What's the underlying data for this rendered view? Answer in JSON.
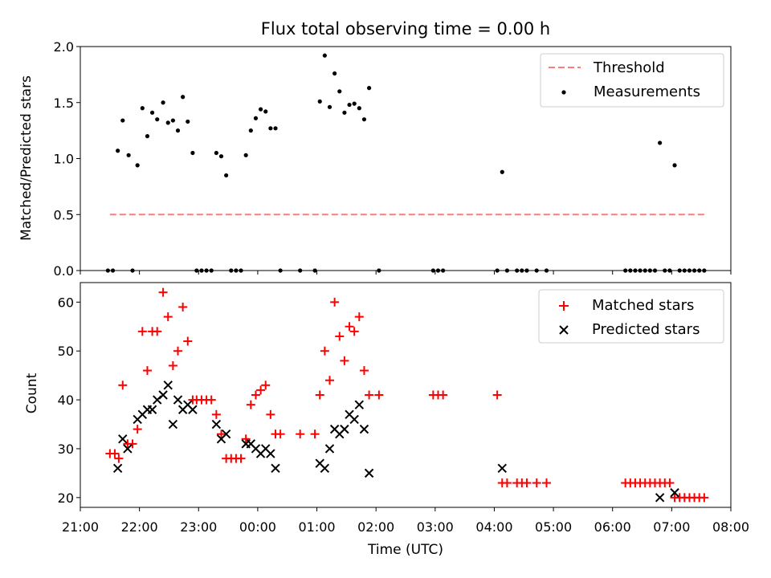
{
  "title": "Flux total observing time = 0.00 h",
  "colors": {
    "threshold": "#ff7a7a",
    "measurements": "#000000",
    "matched": "#ff0000",
    "predicted": "#000000"
  },
  "chart_data": [
    {
      "type": "scatter",
      "ylabel": "Matched/Predicted stars",
      "ylim": [
        0,
        2.0
      ],
      "xlim": [
        "21:00",
        "08:00"
      ],
      "yticks": [
        "0.0",
        "0.5",
        "1.0",
        "1.5",
        "2.0"
      ],
      "legend_position": "top-right",
      "threshold": {
        "name": "Threshold",
        "y": 0.5,
        "x_range": [
          "21:30",
          "07:35"
        ]
      },
      "series": [
        {
          "name": "Measurements",
          "points": [
            [
              "21:28",
              0
            ],
            [
              "21:33",
              0
            ],
            [
              "21:38",
              1.07
            ],
            [
              "21:43",
              1.34
            ],
            [
              "21:49",
              1.03
            ],
            [
              "21:53",
              0
            ],
            [
              "21:58",
              0.94
            ],
            [
              "22:03",
              1.45
            ],
            [
              "22:08",
              1.2
            ],
            [
              "22:13",
              1.41
            ],
            [
              "22:18",
              1.35
            ],
            [
              "22:24",
              1.5
            ],
            [
              "22:29",
              1.32
            ],
            [
              "22:34",
              1.34
            ],
            [
              "22:39",
              1.25
            ],
            [
              "22:44",
              1.55
            ],
            [
              "22:49",
              1.33
            ],
            [
              "22:54",
              1.05
            ],
            [
              "22:58",
              0
            ],
            [
              "23:03",
              0
            ],
            [
              "23:08",
              0
            ],
            [
              "23:13",
              0
            ],
            [
              "23:18",
              1.05
            ],
            [
              "23:23",
              1.02
            ],
            [
              "23:28",
              0.85
            ],
            [
              "23:33",
              0
            ],
            [
              "23:38",
              0
            ],
            [
              "23:43",
              0
            ],
            [
              "23:48",
              1.03
            ],
            [
              "23:53",
              1.25
            ],
            [
              "23:58",
              1.36
            ],
            [
              "00:03",
              1.44
            ],
            [
              "00:08",
              1.42
            ],
            [
              "00:13",
              1.27
            ],
            [
              "00:18",
              1.27
            ],
            [
              "00:23",
              0
            ],
            [
              "00:43",
              0
            ],
            [
              "00:58",
              0
            ],
            [
              "01:03",
              1.51
            ],
            [
              "01:08",
              1.92
            ],
            [
              "01:13",
              1.46
            ],
            [
              "01:18",
              1.76
            ],
            [
              "01:23",
              1.6
            ],
            [
              "01:28",
              1.41
            ],
            [
              "01:33",
              1.48
            ],
            [
              "01:38",
              1.49
            ],
            [
              "01:43",
              1.45
            ],
            [
              "01:48",
              1.35
            ],
            [
              "01:53",
              1.63
            ],
            [
              "02:03",
              0
            ],
            [
              "02:58",
              0
            ],
            [
              "03:03",
              0
            ],
            [
              "03:08",
              0
            ],
            [
              "04:03",
              0
            ],
            [
              "04:08",
              0.88
            ],
            [
              "04:13",
              0
            ],
            [
              "04:23",
              0
            ],
            [
              "04:28",
              0
            ],
            [
              "04:33",
              0
            ],
            [
              "04:43",
              0
            ],
            [
              "04:53",
              0
            ],
            [
              "06:13",
              0
            ],
            [
              "06:18",
              0
            ],
            [
              "06:23",
              0
            ],
            [
              "06:28",
              0
            ],
            [
              "06:33",
              0
            ],
            [
              "06:38",
              0
            ],
            [
              "06:43",
              0
            ],
            [
              "06:48",
              1.14
            ],
            [
              "06:53",
              0
            ],
            [
              "06:58",
              0
            ],
            [
              "07:03",
              0.94
            ],
            [
              "07:08",
              0
            ],
            [
              "07:13",
              0
            ],
            [
              "07:18",
              0
            ],
            [
              "07:23",
              0
            ],
            [
              "07:28",
              0
            ],
            [
              "07:33",
              0
            ]
          ]
        }
      ]
    },
    {
      "type": "scatter",
      "ylabel": "Count",
      "xlabel": "Time (UTC)",
      "ylim": [
        18,
        64
      ],
      "xlim": [
        "21:00",
        "08:00"
      ],
      "xticks": [
        "21:00",
        "22:00",
        "23:00",
        "00:00",
        "01:00",
        "02:00",
        "03:00",
        "04:00",
        "05:00",
        "06:00",
        "07:00",
        "08:00"
      ],
      "yticks": [
        "20",
        "30",
        "40",
        "50",
        "60"
      ],
      "legend_position": "top-right",
      "series": [
        {
          "name": "Matched stars",
          "marker": "+",
          "points": [
            [
              "21:30",
              29
            ],
            [
              "21:35",
              29
            ],
            [
              "21:39",
              28
            ],
            [
              "21:43",
              43
            ],
            [
              "21:48",
              31
            ],
            [
              "21:53",
              31
            ],
            [
              "21:58",
              34
            ],
            [
              "22:03",
              54
            ],
            [
              "22:08",
              46
            ],
            [
              "22:13",
              54
            ],
            [
              "22:18",
              54
            ],
            [
              "22:24",
              62
            ],
            [
              "22:29",
              57
            ],
            [
              "22:34",
              47
            ],
            [
              "22:39",
              50
            ],
            [
              "22:44",
              59
            ],
            [
              "22:49",
              52
            ],
            [
              "22:54",
              40
            ],
            [
              "22:58",
              40
            ],
            [
              "23:03",
              40
            ],
            [
              "23:08",
              40
            ],
            [
              "23:13",
              40
            ],
            [
              "23:18",
              37
            ],
            [
              "23:23",
              33
            ],
            [
              "23:28",
              28
            ],
            [
              "23:33",
              28
            ],
            [
              "23:38",
              28
            ],
            [
              "23:43",
              28
            ],
            [
              "23:48",
              32
            ],
            [
              "23:53",
              39
            ],
            [
              "23:58",
              41
            ],
            [
              "00:03",
              42
            ],
            [
              "00:08",
              43
            ],
            [
              "00:13",
              37
            ],
            [
              "00:18",
              33
            ],
            [
              "00:23",
              33
            ],
            [
              "00:43",
              33
            ],
            [
              "00:58",
              33
            ],
            [
              "01:03",
              41
            ],
            [
              "01:08",
              50
            ],
            [
              "01:13",
              44
            ],
            [
              "01:18",
              60
            ],
            [
              "01:23",
              53
            ],
            [
              "01:28",
              48
            ],
            [
              "01:33",
              55
            ],
            [
              "01:38",
              54
            ],
            [
              "01:43",
              57
            ],
            [
              "01:48",
              46
            ],
            [
              "01:53",
              41
            ],
            [
              "02:03",
              41
            ],
            [
              "02:58",
              41
            ],
            [
              "03:03",
              41
            ],
            [
              "03:08",
              41
            ],
            [
              "04:03",
              41
            ],
            [
              "04:08",
              23
            ],
            [
              "04:13",
              23
            ],
            [
              "04:23",
              23
            ],
            [
              "04:28",
              23
            ],
            [
              "04:33",
              23
            ],
            [
              "04:43",
              23
            ],
            [
              "04:53",
              23
            ],
            [
              "06:13",
              23
            ],
            [
              "06:18",
              23
            ],
            [
              "06:23",
              23
            ],
            [
              "06:28",
              23
            ],
            [
              "06:33",
              23
            ],
            [
              "06:38",
              23
            ],
            [
              "06:43",
              23
            ],
            [
              "06:48",
              23
            ],
            [
              "06:53",
              23
            ],
            [
              "06:58",
              23
            ],
            [
              "07:03",
              20
            ],
            [
              "07:08",
              20
            ],
            [
              "07:13",
              20
            ],
            [
              "07:18",
              20
            ],
            [
              "07:23",
              20
            ],
            [
              "07:28",
              20
            ],
            [
              "07:33",
              20
            ]
          ]
        },
        {
          "name": "Predicted stars",
          "marker": "x",
          "points": [
            [
              "21:38",
              26
            ],
            [
              "21:43",
              32
            ],
            [
              "21:48",
              30
            ],
            [
              "21:58",
              36
            ],
            [
              "22:03",
              37
            ],
            [
              "22:08",
              38
            ],
            [
              "22:13",
              38
            ],
            [
              "22:18",
              40
            ],
            [
              "22:24",
              41
            ],
            [
              "22:29",
              43
            ],
            [
              "22:34",
              35
            ],
            [
              "22:39",
              40
            ],
            [
              "22:44",
              38
            ],
            [
              "22:49",
              39
            ],
            [
              "22:54",
              38
            ],
            [
              "23:18",
              35
            ],
            [
              "23:23",
              32
            ],
            [
              "23:28",
              33
            ],
            [
              "23:48",
              31
            ],
            [
              "23:53",
              31
            ],
            [
              "23:58",
              30
            ],
            [
              "00:03",
              29
            ],
            [
              "00:08",
              30
            ],
            [
              "00:13",
              29
            ],
            [
              "00:18",
              26
            ],
            [
              "01:03",
              27
            ],
            [
              "01:08",
              26
            ],
            [
              "01:13",
              30
            ],
            [
              "01:18",
              34
            ],
            [
              "01:23",
              33
            ],
            [
              "01:28",
              34
            ],
            [
              "01:33",
              37
            ],
            [
              "01:38",
              36
            ],
            [
              "01:43",
              39
            ],
            [
              "01:48",
              34
            ],
            [
              "01:53",
              25
            ],
            [
              "04:08",
              26
            ],
            [
              "06:48",
              20
            ],
            [
              "07:03",
              21
            ]
          ]
        }
      ]
    }
  ]
}
